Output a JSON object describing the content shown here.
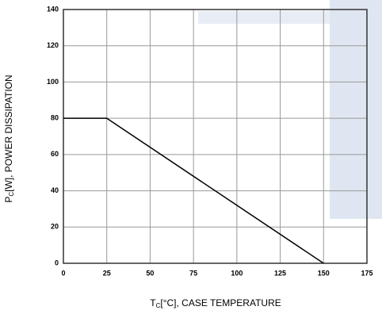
{
  "chart_data": {
    "type": "line",
    "x_label": [
      "T",
      "C",
      "[°C], CASE TEMPERATURE"
    ],
    "y_label": [
      "P",
      "C",
      "[W], POWER DISSIPATION"
    ],
    "x": [
      0,
      25,
      150
    ],
    "series": [
      {
        "color": "#000000",
        "values": [
          80,
          80,
          0
        ]
      }
    ],
    "xlim": [
      0,
      175
    ],
    "xticks": [
      0,
      25,
      50,
      75,
      100,
      125,
      150,
      175
    ],
    "ylim": [
      0,
      140
    ],
    "yticks": [
      0,
      20,
      40,
      60,
      80,
      100,
      120,
      140
    ],
    "grid": true
  }
}
